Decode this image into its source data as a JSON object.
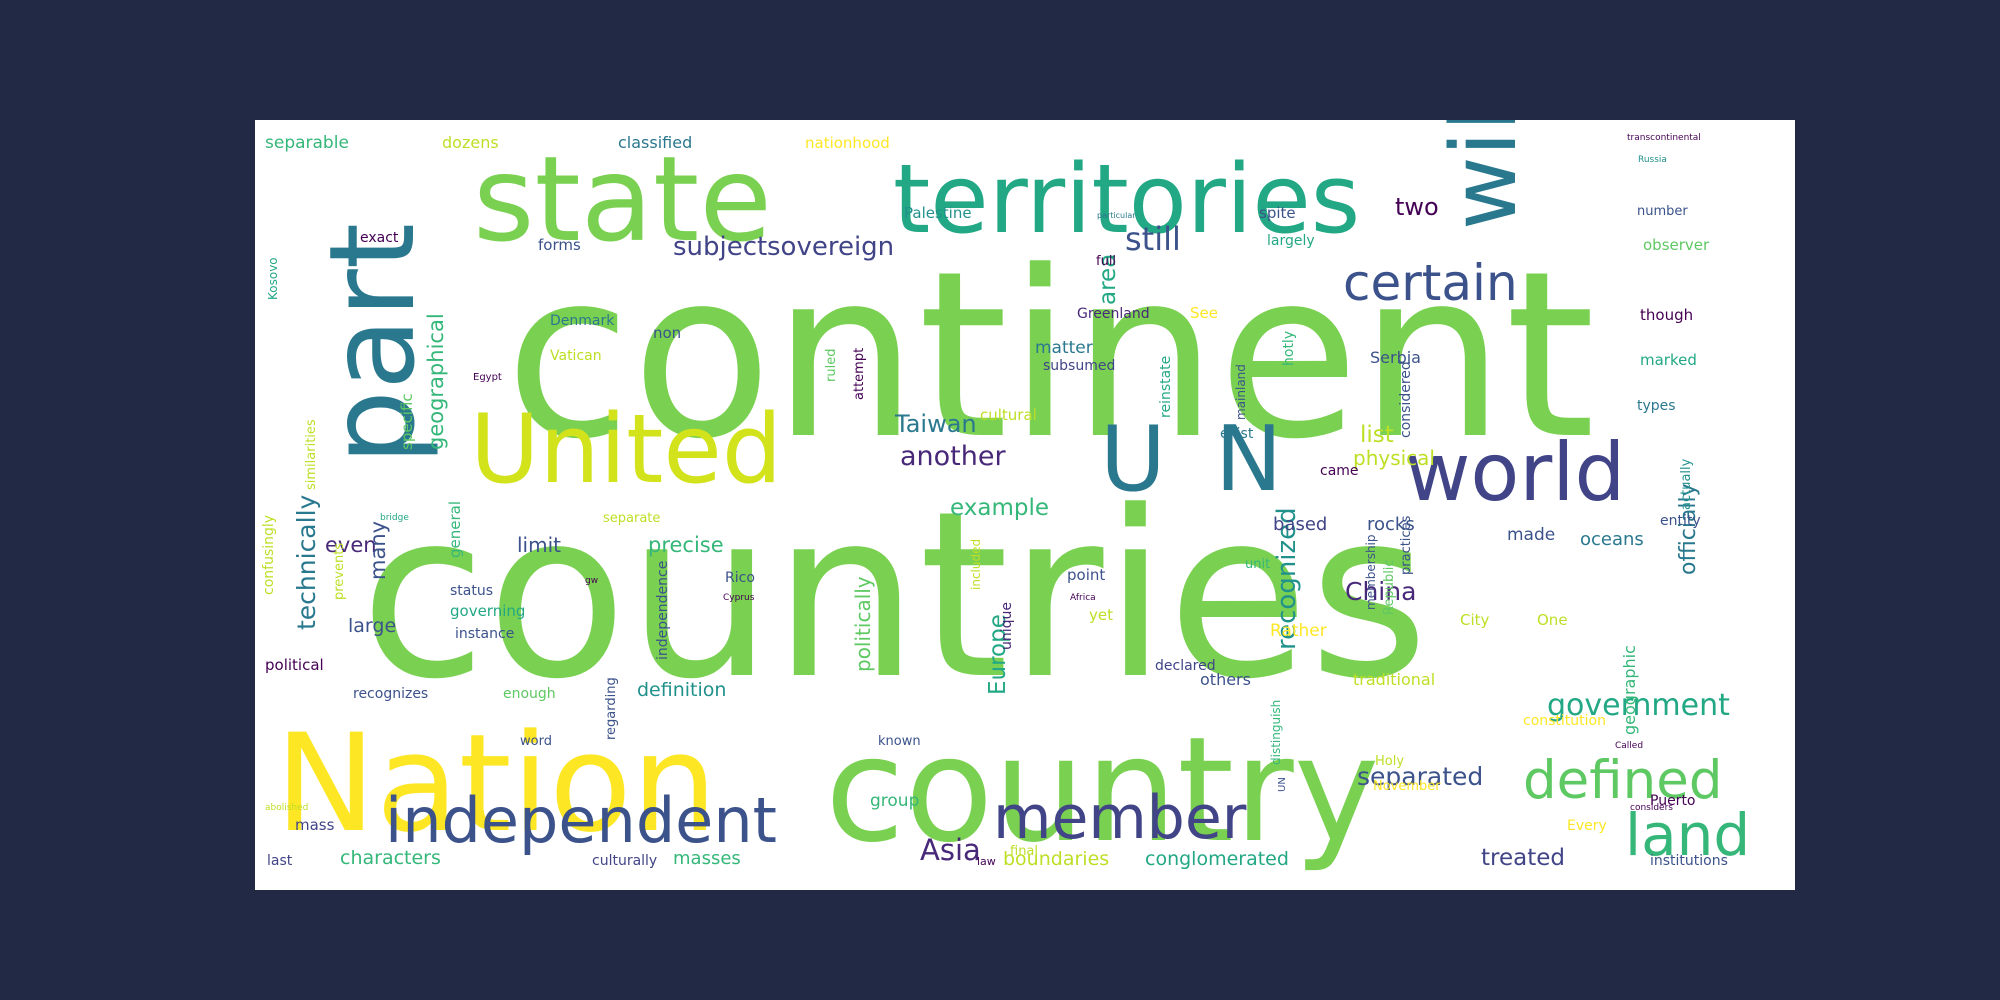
{
  "colors": {
    "background": "#222945",
    "canvas": "#ffffff",
    "palette": [
      "#7ad151",
      "#fde725",
      "#22a884",
      "#2a788e",
      "#414487",
      "#440154",
      "#bddf26",
      "#35b779"
    ]
  },
  "words": [
    {
      "id": "countries",
      "text": "countries",
      "color": "#7ad151"
    },
    {
      "id": "continent",
      "text": "continent",
      "color": "#7ad151"
    },
    {
      "id": "nation",
      "text": "Nation",
      "color": "#fde725"
    },
    {
      "id": "country",
      "text": "country",
      "color": "#7ad151"
    },
    {
      "id": "state",
      "text": "state",
      "color": "#7ad151"
    },
    {
      "id": "territories",
      "text": "territories",
      "color": "#22a884"
    },
    {
      "id": "part",
      "text": "part",
      "color": "#2a788e"
    },
    {
      "id": "united",
      "text": "United",
      "color": "#d2e21b"
    },
    {
      "id": "u",
      "text": "U",
      "color": "#2a788e"
    },
    {
      "id": "n",
      "text": "N",
      "color": "#2a788e"
    },
    {
      "id": "world",
      "text": "world",
      "color": "#414487"
    },
    {
      "id": "will",
      "text": "will",
      "color": "#2a788e"
    },
    {
      "id": "certain",
      "text": "certain",
      "color": "#3b528b"
    },
    {
      "id": "independent",
      "text": "independent",
      "color": "#3b528b"
    },
    {
      "id": "member",
      "text": "member",
      "color": "#414487"
    },
    {
      "id": "defined",
      "text": "defined",
      "color": "#5ec962"
    },
    {
      "id": "land",
      "text": "land",
      "color": "#35b779"
    },
    {
      "id": "recognized",
      "text": "recognized",
      "color": "#21918c"
    },
    {
      "id": "government",
      "text": "government",
      "color": "#22a884"
    },
    {
      "id": "subject",
      "text": "subject",
      "color": "#414487"
    },
    {
      "id": "sovereign",
      "text": "sovereign",
      "color": "#414487"
    },
    {
      "id": "still",
      "text": "still",
      "color": "#3b528b"
    },
    {
      "id": "two",
      "text": "two",
      "color": "#440154"
    },
    {
      "id": "area",
      "text": "area",
      "color": "#22a884"
    },
    {
      "id": "technically",
      "text": "technically",
      "color": "#2a788e"
    },
    {
      "id": "geographical",
      "text": "geographical",
      "color": "#35b779"
    },
    {
      "id": "another",
      "text": "another",
      "color": "#482878"
    },
    {
      "id": "taiwan",
      "text": "Taiwan",
      "color": "#2a788e"
    },
    {
      "id": "example",
      "text": "example",
      "color": "#35b779"
    },
    {
      "id": "china",
      "text": "China",
      "color": "#482878"
    },
    {
      "id": "europe",
      "text": "Europe",
      "color": "#22a884"
    },
    {
      "id": "asia",
      "text": "Asia",
      "color": "#482878"
    },
    {
      "id": "separated",
      "text": "separated",
      "color": "#3b528b"
    },
    {
      "id": "treated",
      "text": "treated",
      "color": "#414487"
    },
    {
      "id": "list",
      "text": "list",
      "color": "#bddf26"
    },
    {
      "id": "physical",
      "text": "physical",
      "color": "#bddf26"
    },
    {
      "id": "officially",
      "text": "officially",
      "color": "#2a788e"
    },
    {
      "id": "even",
      "text": "even",
      "color": "#482878"
    },
    {
      "id": "many",
      "text": "many",
      "color": "#3b528b"
    },
    {
      "id": "large",
      "text": "large",
      "color": "#3b528b"
    },
    {
      "id": "precise",
      "text": "precise",
      "color": "#35b779"
    },
    {
      "id": "limit",
      "text": "limit",
      "color": "#3b528b"
    },
    {
      "id": "politically",
      "text": "politically",
      "color": "#5ec962"
    },
    {
      "id": "definition",
      "text": "definition",
      "color": "#21918c"
    },
    {
      "id": "boundaries",
      "text": "boundaries",
      "color": "#bddf26"
    },
    {
      "id": "conglomerated",
      "text": "conglomerated",
      "color": "#22a884"
    },
    {
      "id": "characters",
      "text": "characters",
      "color": "#35b779"
    },
    {
      "id": "masses",
      "text": "masses",
      "color": "#35b779"
    },
    {
      "id": "rather",
      "text": "Rather",
      "color": "#fde725"
    },
    {
      "id": "based",
      "text": "based",
      "color": "#414487"
    },
    {
      "id": "rocks",
      "text": "rocks",
      "color": "#3b528b"
    },
    {
      "id": "made",
      "text": "made",
      "color": "#3b528b"
    },
    {
      "id": "oceans",
      "text": "oceans",
      "color": "#2a788e"
    },
    {
      "id": "geographic",
      "text": "geographic",
      "color": "#35b779"
    },
    {
      "id": "separable",
      "text": "separable",
      "color": "#35b779"
    },
    {
      "id": "dozens",
      "text": "dozens",
      "color": "#bddf26"
    },
    {
      "id": "classified",
      "text": "classified",
      "color": "#2a788e"
    },
    {
      "id": "nationhood",
      "text": "nationhood",
      "color": "#fde725"
    },
    {
      "id": "transcontinental",
      "text": "transcontinental",
      "color": "#440154"
    },
    {
      "id": "russia",
      "text": "Russia",
      "color": "#21918c"
    },
    {
      "id": "kosovo",
      "text": "Kosovo",
      "color": "#22a884"
    },
    {
      "id": "exact",
      "text": "exact",
      "color": "#440154"
    },
    {
      "id": "forms",
      "text": "forms",
      "color": "#3b528b"
    },
    {
      "id": "specific",
      "text": "specific",
      "color": "#5ec962"
    },
    {
      "id": "palestine",
      "text": "Palestine",
      "color": "#21918c"
    },
    {
      "id": "particular",
      "text": "particular",
      "color": "#2a788e"
    },
    {
      "id": "spite",
      "text": "spite",
      "color": "#3b528b"
    },
    {
      "id": "largely",
      "text": "largely",
      "color": "#22a884"
    },
    {
      "id": "full",
      "text": "full",
      "color": "#440154"
    },
    {
      "id": "number",
      "text": "number",
      "color": "#3b528b"
    },
    {
      "id": "observer",
      "text": "observer",
      "color": "#5ec962"
    },
    {
      "id": "though",
      "text": "though",
      "color": "#440154"
    },
    {
      "id": "denmark",
      "text": "Denmark",
      "color": "#2a788e"
    },
    {
      "id": "non",
      "text": "non",
      "color": "#3b528b"
    },
    {
      "id": "greenland",
      "text": "Greenland",
      "color": "#482878"
    },
    {
      "id": "see",
      "text": "See",
      "color": "#fde725"
    },
    {
      "id": "vatican",
      "text": "Vatican",
      "color": "#bddf26"
    },
    {
      "id": "matter",
      "text": "matter",
      "color": "#2a788e"
    },
    {
      "id": "subsumed",
      "text": "subsumed",
      "color": "#414487"
    },
    {
      "id": "attempt",
      "text": "attempt",
      "color": "#440154"
    },
    {
      "id": "ruled",
      "text": "ruled",
      "color": "#5ec962"
    },
    {
      "id": "reinstate",
      "text": "reinstate",
      "color": "#22a884"
    },
    {
      "id": "mainland",
      "text": "mainland",
      "color": "#3b528b"
    },
    {
      "id": "hotly",
      "text": "hotly",
      "color": "#35b779"
    },
    {
      "id": "serbia",
      "text": "Serbia",
      "color": "#3b528b"
    },
    {
      "id": "considered",
      "text": "considered",
      "color": "#3b528b"
    },
    {
      "id": "marked",
      "text": "marked",
      "color": "#22a884"
    },
    {
      "id": "egypt",
      "text": "Egypt",
      "color": "#440154"
    },
    {
      "id": "similarities",
      "text": "similarities",
      "color": "#bddf26"
    },
    {
      "id": "general",
      "text": "general",
      "color": "#35b779"
    },
    {
      "id": "cultural",
      "text": "cultural",
      "color": "#bddf26"
    },
    {
      "id": "exist",
      "text": "exist",
      "color": "#2a788e"
    },
    {
      "id": "came",
      "text": "came",
      "color": "#440154"
    },
    {
      "id": "types",
      "text": "types",
      "color": "#2a788e"
    },
    {
      "id": "actually",
      "text": "actually",
      "color": "#21918c"
    },
    {
      "id": "entity",
      "text": "entity",
      "color": "#3b528b"
    },
    {
      "id": "bridge",
      "text": "bridge",
      "color": "#22a884"
    },
    {
      "id": "separate",
      "text": "separate",
      "color": "#bddf26"
    },
    {
      "id": "rico",
      "text": "Rico",
      "color": "#3b528b"
    },
    {
      "id": "confusingly",
      "text": "confusingly",
      "color": "#bddf26"
    },
    {
      "id": "prevents",
      "text": "prevents",
      "color": "#bddf26"
    },
    {
      "id": "status",
      "text": "status",
      "color": "#3b528b"
    },
    {
      "id": "governing",
      "text": "governing",
      "color": "#22a884"
    },
    {
      "id": "instance",
      "text": "instance",
      "color": "#3b528b"
    },
    {
      "id": "independence",
      "text": "independence",
      "color": "#3b528b"
    },
    {
      "id": "gw",
      "text": "gw",
      "color": "#440154"
    },
    {
      "id": "cyprus",
      "text": "Cyprus",
      "color": "#440154"
    },
    {
      "id": "included",
      "text": "included",
      "color": "#bddf26"
    },
    {
      "id": "unique",
      "text": "unique",
      "color": "#482878"
    },
    {
      "id": "point",
      "text": "point",
      "color": "#3b528b"
    },
    {
      "id": "africa",
      "text": "Africa",
      "color": "#440154"
    },
    {
      "id": "yet",
      "text": "yet",
      "color": "#bddf26"
    },
    {
      "id": "declared",
      "text": "declared",
      "color": "#414487"
    },
    {
      "id": "unit",
      "text": "unit",
      "color": "#35b779"
    },
    {
      "id": "practices",
      "text": "practices",
      "color": "#3b528b"
    },
    {
      "id": "membership",
      "text": "membership",
      "color": "#3b528b"
    },
    {
      "id": "republic",
      "text": "Republic",
      "color": "#5ec962"
    },
    {
      "id": "city",
      "text": "City",
      "color": "#bddf26"
    },
    {
      "id": "one",
      "text": "One",
      "color": "#bddf26"
    },
    {
      "id": "political",
      "text": "political",
      "color": "#440154"
    },
    {
      "id": "recognizes",
      "text": "recognizes",
      "color": "#3b528b"
    },
    {
      "id": "enough",
      "text": "enough",
      "color": "#5ec962"
    },
    {
      "id": "regarding",
      "text": "regarding",
      "color": "#3b528b"
    },
    {
      "id": "word",
      "text": "word",
      "color": "#3b528b"
    },
    {
      "id": "known",
      "text": "known",
      "color": "#3b528b"
    },
    {
      "id": "others",
      "text": "others",
      "color": "#3b528b"
    },
    {
      "id": "traditional",
      "text": "traditional",
      "color": "#bddf26"
    },
    {
      "id": "constitution",
      "text": "constitution",
      "color": "#fde725"
    },
    {
      "id": "called",
      "text": "Called",
      "color": "#440154"
    },
    {
      "id": "distinguish",
      "text": "distinguish",
      "color": "#35b779"
    },
    {
      "id": "un",
      "text": "UN",
      "color": "#3b528b"
    },
    {
      "id": "holy",
      "text": "Holy",
      "color": "#bddf26"
    },
    {
      "id": "november",
      "text": "November",
      "color": "#fde725"
    },
    {
      "id": "group",
      "text": "group",
      "color": "#35b779"
    },
    {
      "id": "considers",
      "text": "considers",
      "color": "#440154"
    },
    {
      "id": "puerto",
      "text": "Puerto",
      "color": "#440154"
    },
    {
      "id": "every",
      "text": "Every",
      "color": "#fde725"
    },
    {
      "id": "abolished",
      "text": "abolished",
      "color": "#bddf26"
    },
    {
      "id": "mass",
      "text": "mass",
      "color": "#414487"
    },
    {
      "id": "last",
      "text": "last",
      "color": "#414487"
    },
    {
      "id": "culturally",
      "text": "culturally",
      "color": "#414487"
    },
    {
      "id": "law",
      "text": "law",
      "color": "#440154"
    },
    {
      "id": "final",
      "text": "final",
      "color": "#bddf26"
    },
    {
      "id": "institutions",
      "text": "institutions",
      "color": "#3b528b"
    }
  ]
}
